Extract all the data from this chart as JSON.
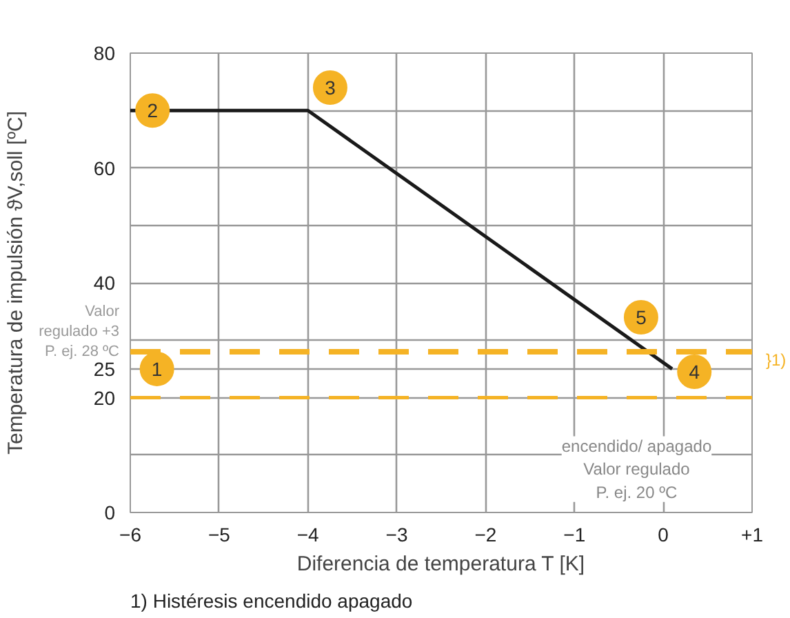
{
  "chart_data": {
    "type": "line",
    "xlabel": "Diferencia de temperatura T [K]",
    "ylabel": "Temperatura de impulsión ϑV,soll [ºC]",
    "x": [
      -6,
      -4,
      0.1
    ],
    "series": [
      {
        "color": "#1a1a1a",
        "values": [
          70,
          70,
          25
        ]
      }
    ],
    "xlim": [
      -6,
      1
    ],
    "xticks": [
      -6,
      -5,
      -4,
      -3,
      -2,
      -1,
      0,
      {
        "value": 1,
        "label": "+1"
      }
    ],
    "ylim": [
      0,
      80
    ],
    "yticks": [
      0,
      {
        "value": 10,
        "label": null
      },
      20,
      25,
      {
        "value": 30,
        "label": null
      },
      40,
      {
        "value": 50,
        "label": null
      },
      60,
      {
        "value": 70,
        "label": null
      },
      80
    ],
    "grid": true,
    "marker": "none",
    "line_style": "solid",
    "ref_lines": [
      {
        "axis": "y",
        "value": 28,
        "label": "Valor\nregulado +3\nP. ej. 28 ºC",
        "color": "#f5b325",
        "line_style": "dashed"
      },
      {
        "axis": "y",
        "value": 20,
        "color": "#f5b325",
        "line_style": "dashed"
      }
    ],
    "annotations": [
      {
        "text": "1",
        "x": -5.7,
        "y": 25
      },
      {
        "text": "2",
        "x": -5.75,
        "y": 70
      },
      {
        "text": "3",
        "x": -3.75,
        "y": 74
      },
      {
        "text": "4",
        "x": 0.35,
        "y": 24.5
      },
      {
        "text": "5",
        "x": -0.25,
        "y": 34
      },
      {
        "text": "encendido/ apagado\nValor regulado\nP. ej. 20 ºC",
        "x": -0.3,
        "y": 20
      },
      "}1)",
      "1) Histéresis encendido apagado"
    ]
  }
}
